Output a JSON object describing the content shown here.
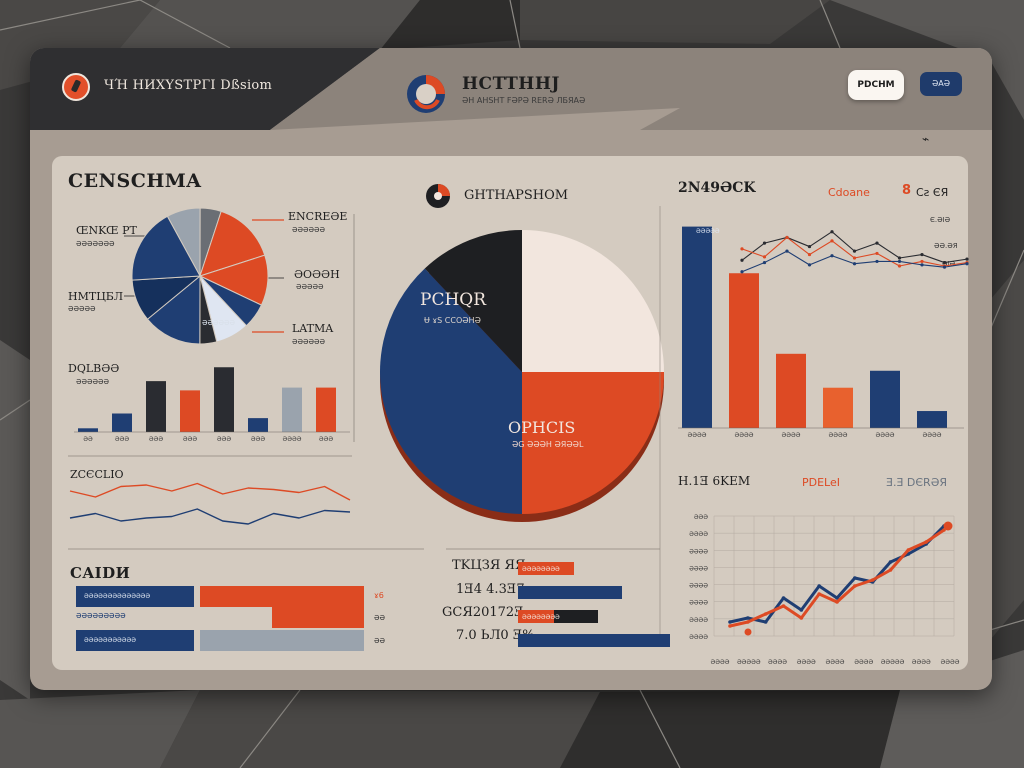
{
  "header": {
    "brand_title": "ЧΉ HИXYSTPГI Dßsiom",
    "center_title": "HCTTHHJ",
    "center_subtitle": "ƏH AHSHT FƏPƏ RERƏ ЛБЯАƏ",
    "primary_button": "PDCHM",
    "secondary_button": "ƏAƏ",
    "link_icon_text": "⌁"
  },
  "colors": {
    "navy": "#1f3e73",
    "orange": "#dd4a24",
    "charcoal": "#2a2c31",
    "gray": "#9aa3ad",
    "cream": "#f2e6de"
  },
  "left": {
    "title": "CENSCHMA",
    "pie": {
      "labels_left": [
        "ŒNKŒ PT",
        "HMTЦБЛ"
      ],
      "labels_left_sub": [
        "ƏƏƏƏƏƏƏ",
        "ƏƏƏƏƏ"
      ],
      "labels_right": [
        "ENCREƏE",
        "ƏOƏƏH",
        "LATMA"
      ],
      "labels_right_sub": [
        "ƏƏƏƏƏƏ",
        "ƏƏƏƏƏ",
        "ƏƏƏƏƏƏ"
      ],
      "inner_label": "ƏƏƏƏƏƏ"
    },
    "bar_title": "DQLBƏƏ",
    "bar_sub": "ƏƏƏƏƏƏ",
    "bar_ticks": [
      "ƏƏ",
      "ƏƏƏ",
      "ƏƏƏ",
      "ƏƏƏ",
      "ƏƏƏ",
      "ƏƏƏ",
      "ƏƏƏƏ",
      "ƏƏƏ"
    ],
    "line_title": "ZCЄCLIO",
    "hbar_title": "CAIDИ",
    "hbar_labels": [
      "ƏƏƏƏƏƏƏƏƏƏƏƏƏƏ",
      "ƏƏƏƏƏƏƏƏƏ",
      "ƏƏƏƏƏƏƏƏƏƏƏ"
    ],
    "hbar_suffix": [
      "ɤ6",
      "ƏƏ",
      "ƏƏ"
    ]
  },
  "center": {
    "title": "GHTHAPSHOM",
    "pie_label_top": "PCHQR",
    "pie_sub_top": "Ʉ ɤS CCOƏHƏ",
    "pie_label_bottom": "OPHCIS",
    "pie_sub_bottom": "ƏG ƏƏƏH ƏЯƏƏL",
    "table_rows": [
      "TKЦЗЯ ЯЯ",
      "1Ǝ4 4.3Ǝ7",
      "GCЯ20172Ǝ",
      "7.0 ЬЛ0 Ǝ%"
    ],
    "table_bar_labels": [
      "ƏƏƏƏƏƏƏƏ",
      "",
      "ƏƏƏƏƏƏƏƏ",
      ""
    ]
  },
  "right": {
    "title": "2N49ƏCK",
    "legend1": "Cdoane",
    "legend2_glyph": "8",
    "legend2": "Cƨ ЄЯ",
    "tick_right": [
      "Є.ƏIƏ",
      "ƏƏ.ƏЯ",
      "ƏIƏ"
    ],
    "bar_label": "ƏƏƏƏƏ",
    "bar_ticks": [
      "ƏƏƏƏ",
      "ƏƏƏƏ",
      "ƏƏƏƏ",
      "ƏƏƏƏ",
      "ƏƏƏƏ",
      "ƏƏƏƏ",
      "ƏƏƏƏ"
    ],
    "line_title": "H.1Ǝ 6KEM",
    "line_legend1": "PDELeI",
    "line_legend2": "Ǝ.Ǝ DЄRƏЯ",
    "line_y_ticks": [
      "ƏƏƏ",
      "ƏƏƏƏ",
      "ƏƏƏƏ",
      "ƏƏƏƏ",
      "ƏƏƏƏ",
      "ƏƏƏƏ",
      "ƏƏƏƏ",
      "ƏƏƏƏ"
    ],
    "line_x_ticks": [
      "ƏƏƏƏ",
      "ƏƏƏƏƏ",
      "ƏƏƏƏ",
      "ƏƏƏƏ",
      "ƏƏƏƏ",
      "ƏƏƏƏ",
      "ƏƏƏƏƏ",
      "ƏƏƏƏ",
      "ƏƏƏƏ"
    ]
  },
  "chart_data": [
    {
      "type": "pie",
      "id": "left-pie",
      "values": [
        8,
        5,
        15,
        12,
        6,
        8,
        4,
        14,
        10,
        18
      ],
      "colors": [
        "#9aa3ad",
        "#6a6e74",
        "#dd4a24",
        "#dd4a24",
        "#1f3e73",
        "#dfe6f2",
        "#2a2c31",
        "#1f3e73",
        "#15305c",
        "#1f3e73"
      ]
    },
    {
      "type": "bar",
      "id": "left-bars",
      "values": [
        0.4,
        2,
        5.5,
        4.5,
        7,
        1.5,
        4.8,
        4.8
      ],
      "colors": [
        "#1f3e73",
        "#1f3e73",
        "#2a2c31",
        "#dd4a24",
        "#2a2c31",
        "#1f3e73",
        "#9aa3ad",
        "#dd4a24"
      ],
      "ylim": [
        0,
        8
      ]
    },
    {
      "type": "line",
      "id": "left-lines",
      "series": [
        {
          "values": [
            3,
            2.6,
            3.3,
            3.4,
            3.0,
            3.5,
            2.8,
            3.2,
            3.1,
            2.9,
            3.3,
            2.4
          ],
          "color": "#dd4a24"
        },
        {
          "values": [
            1.2,
            1.5,
            1.0,
            1.2,
            1.3,
            1.8,
            1.0,
            0.8,
            1.5,
            1.2,
            1.7,
            1.6
          ],
          "color": "#1f3e73"
        }
      ]
    },
    {
      "type": "pie",
      "id": "center-pie",
      "values": [
        25,
        25,
        38,
        12
      ],
      "colors": [
        "#f2e6de",
        "#dd4a24",
        "#1f3e73",
        "#1e1f22"
      ]
    },
    {
      "type": "bar",
      "id": "right-bars",
      "values": [
        9.5,
        7.3,
        3.5,
        1.9,
        2.7,
        0.8
      ],
      "colors": [
        "#1f3e73",
        "#dd4a24",
        "#dd4a24",
        "#e8612e",
        "#1f3e73",
        "#1f3e73"
      ],
      "ylim": [
        0,
        10
      ]
    },
    {
      "type": "line",
      "id": "right-top-lines",
      "series": [
        {
          "values": [
            4,
            5.5,
            6,
            5.2,
            6.5,
            4.8,
            5.5,
            4.2,
            4.5,
            3.8,
            4.1
          ],
          "color": "#2a2c31"
        },
        {
          "values": [
            5,
            4.3,
            6,
            4.5,
            5.7,
            4.2,
            4.6,
            3.5,
            3.9,
            3.5,
            3.8
          ],
          "color": "#dd4a24"
        },
        {
          "values": [
            3,
            3.8,
            4.8,
            3.6,
            4.4,
            3.7,
            3.9,
            3.9,
            3.6,
            3.4,
            3.7
          ],
          "color": "#1f3e73"
        }
      ]
    },
    {
      "type": "line",
      "id": "right-bottom-lines",
      "series": [
        {
          "values": [
            1,
            1.2,
            1.0,
            2.2,
            1.6,
            2.8,
            2.2,
            3.2,
            3.0,
            4.0,
            4.4,
            4.9,
            5.8
          ],
          "color": "#1f3e73"
        },
        {
          "values": [
            0.8,
            1.0,
            1.4,
            1.8,
            1.2,
            2.4,
            2.0,
            2.8,
            3.1,
            3.6,
            4.6,
            5.0,
            5.6
          ],
          "color": "#dd4a24"
        }
      ]
    },
    {
      "type": "bar",
      "id": "center-hbars",
      "values": [
        1.0,
        1.5,
        1.2,
        1.6
      ],
      "colors": [
        "#dd4a24",
        "#1f3e73",
        "#1e1f22",
        "#1f3e73"
      ],
      "xlim": [
        0,
        2
      ]
    }
  ]
}
